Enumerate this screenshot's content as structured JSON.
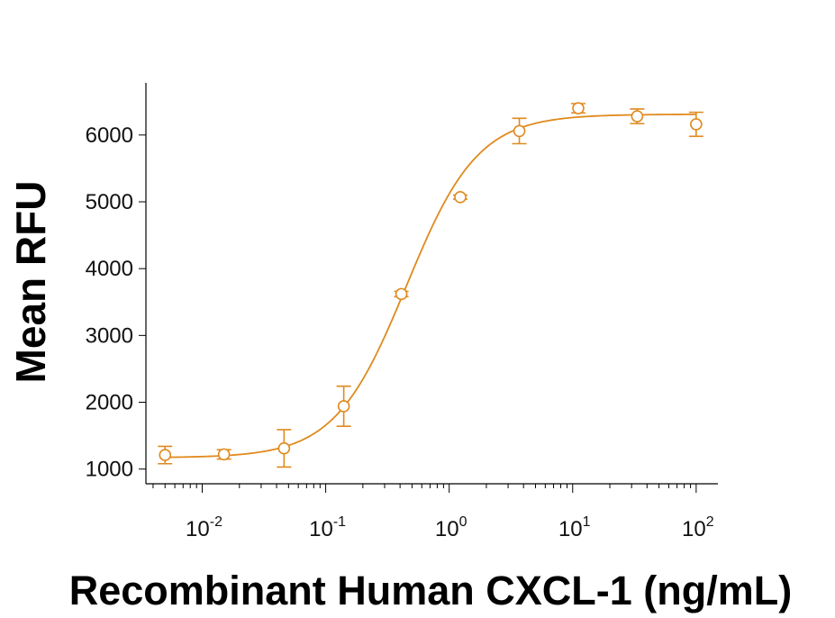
{
  "chart_data": {
    "type": "scatter",
    "xlabel": "Recombinant Human CXCL-1 (ng/mL)",
    "ylabel": "Mean RFU",
    "x_scale": "log",
    "xlim": [
      0.0035,
      150
    ],
    "ylim": [
      780,
      6780
    ],
    "x_ticks": [
      {
        "value": 0.01,
        "base": "10",
        "exp": "-2"
      },
      {
        "value": 0.1,
        "base": "10",
        "exp": "-1"
      },
      {
        "value": 1,
        "base": "10",
        "exp": "0"
      },
      {
        "value": 10,
        "base": "10",
        "exp": "1"
      },
      {
        "value": 100,
        "base": "10",
        "exp": "2"
      }
    ],
    "y_ticks": [
      {
        "value": 1000,
        "label": "1000"
      },
      {
        "value": 2000,
        "label": "2000"
      },
      {
        "value": 3000,
        "label": "3000"
      },
      {
        "value": 4000,
        "label": "4000"
      },
      {
        "value": 5000,
        "label": "5000"
      },
      {
        "value": 6000,
        "label": "6000"
      }
    ],
    "color": "#E08A1E",
    "grid": false,
    "points": [
      {
        "x": 0.005,
        "y": 1210,
        "err": 130
      },
      {
        "x": 0.015,
        "y": 1220,
        "err": 70
      },
      {
        "x": 0.046,
        "y": 1310,
        "err": 280
      },
      {
        "x": 0.14,
        "y": 1940,
        "err": 300
      },
      {
        "x": 0.41,
        "y": 3620,
        "err": 40
      },
      {
        "x": 1.23,
        "y": 5070,
        "err": 30
      },
      {
        "x": 3.7,
        "y": 6060,
        "err": 190
      },
      {
        "x": 11.1,
        "y": 6400,
        "err": 70
      },
      {
        "x": 33.3,
        "y": 6280,
        "err": 110
      },
      {
        "x": 100,
        "y": 6160,
        "err": 180
      }
    ],
    "fit_curve": {
      "model": "4PL",
      "bottom": 1170,
      "top": 6310,
      "ec50": 0.45,
      "hill": 1.5
    }
  }
}
